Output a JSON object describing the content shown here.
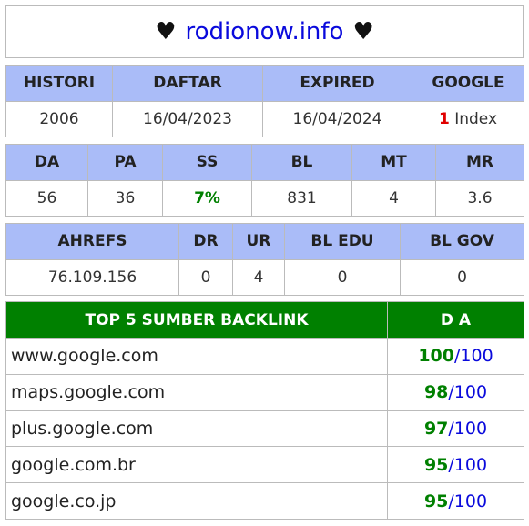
{
  "title": {
    "left_symbol": "♥",
    "site": "rodionow.info",
    "right_symbol": "♥"
  },
  "table1": {
    "headers": [
      "HISTORI",
      "DAFTAR",
      "EXPIRED",
      "GOOGLE"
    ],
    "values": {
      "histori": "2006",
      "daftar": "16/04/2023",
      "expired": "16/04/2024",
      "google_count": "1",
      "google_label": "Index"
    }
  },
  "table2": {
    "headers": [
      "DA",
      "PA",
      "SS",
      "BL",
      "MT",
      "MR"
    ],
    "values": [
      "56",
      "36",
      "7%",
      "831",
      "4",
      "3.6"
    ]
  },
  "table3": {
    "headers": [
      "AHREFS",
      "DR",
      "UR",
      "BL EDU",
      "BL GOV"
    ],
    "values": [
      "76.109.156",
      "0",
      "4",
      "0",
      "0"
    ]
  },
  "backlinks": {
    "headers": [
      "TOP 5 SUMBER BACKLINK",
      "D A"
    ],
    "rows": [
      {
        "domain": "www.google.com",
        "da": "100",
        "max": "/100"
      },
      {
        "domain": "maps.google.com",
        "da": "98",
        "max": "/100"
      },
      {
        "domain": "plus.google.com",
        "da": "97",
        "max": "/100"
      },
      {
        "domain": "google.com.br",
        "da": "95",
        "max": "/100"
      },
      {
        "domain": "google.co.jp",
        "da": "95",
        "max": "/100"
      }
    ]
  },
  "colors": {
    "header_blue": "#aabcf8",
    "header_green": "#008000",
    "link_blue": "#0a0adc",
    "accent_red": "#e00000",
    "accent_green": "#008000"
  }
}
